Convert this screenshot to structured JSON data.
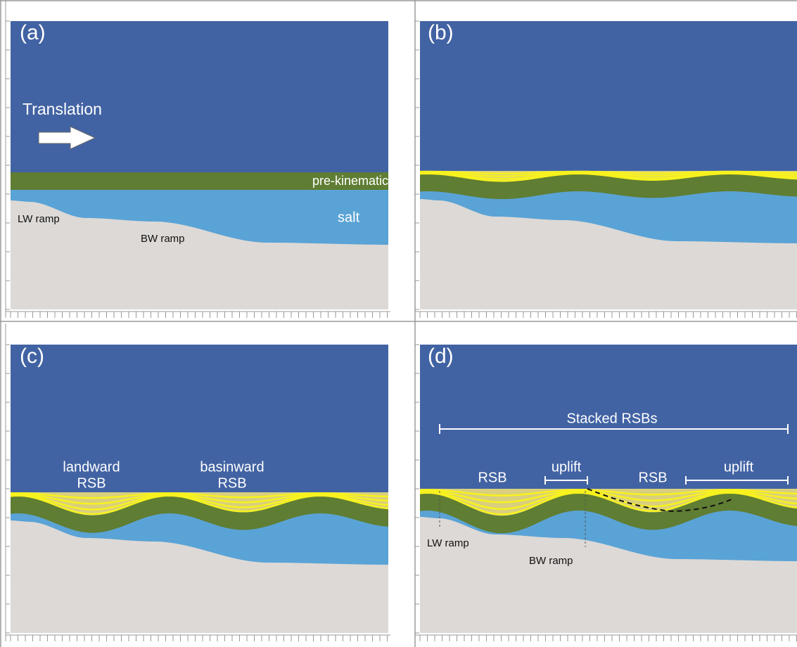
{
  "panels": [
    {
      "label": "(a)",
      "translation": "Translation",
      "layer_label": "pre-kinematic",
      "salt_label": "salt",
      "lw_ramp": "LW ramp",
      "bw_ramp": "BW ramp"
    },
    {
      "label": "(b)"
    },
    {
      "label": "(c)",
      "landward": [
        "landward",
        "RSB"
      ],
      "basinward": [
        "basinward",
        "RSB"
      ]
    },
    {
      "label": "(d)",
      "stacked": "Stacked RSBs",
      "rsb_left": "RSB",
      "uplift_left": "uplift",
      "rsb_right": "RSB",
      "uplift_right": "uplift",
      "lw_ramp": "LW ramp",
      "bw_ramp": "BW ramp"
    }
  ]
}
